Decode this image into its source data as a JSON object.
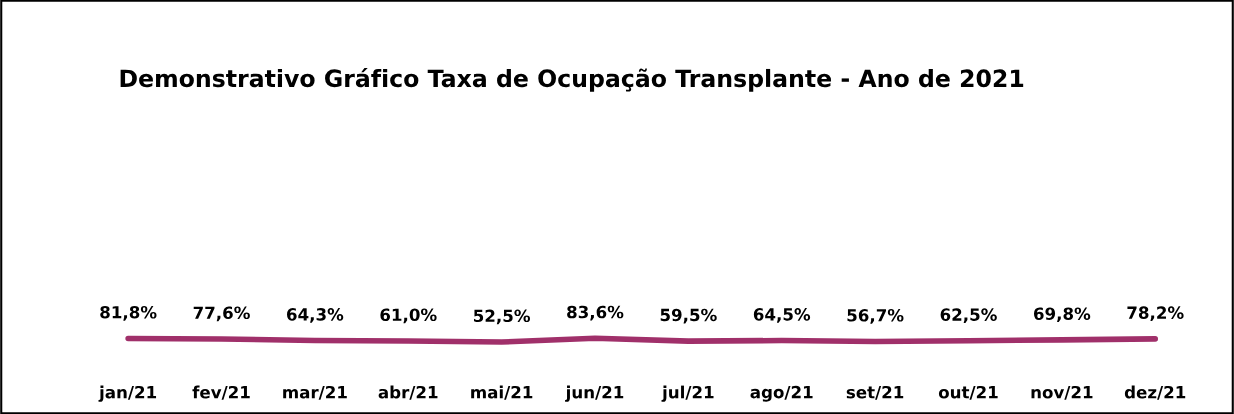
{
  "chart_data": {
    "type": "line",
    "title": "Demonstrativo Gráfico Taxa de Ocupação Transplante - Ano de 2021",
    "categories": [
      "jan/21",
      "fev/21",
      "mar/21",
      "abr/21",
      "mai/21",
      "jun/21",
      "jul/21",
      "ago/21",
      "set/21",
      "out/21",
      "nov/21",
      "dez/21"
    ],
    "series": [
      {
        "color": "#a0306a",
        "values": [
          81.8,
          77.6,
          64.3,
          61.0,
          52.5,
          83.6,
          59.5,
          64.5,
          56.7,
          62.5,
          69.8,
          78.2
        ],
        "value_labels": [
          "81,8%",
          "77,6%",
          "64,3%",
          "61,0%",
          "52,5%",
          "83,6%",
          "59,5%",
          "64,5%",
          "56,7%",
          "62,5%",
          "69,8%",
          "78,2%"
        ]
      }
    ],
    "tick_labels": "x",
    "grid": false,
    "legend": false,
    "marker": "none",
    "line_style": "solid"
  }
}
